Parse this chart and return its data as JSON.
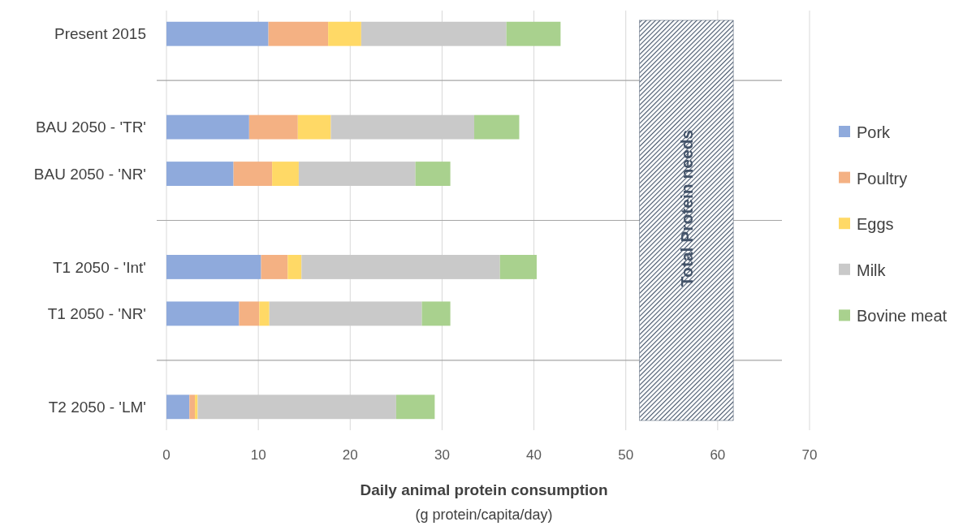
{
  "chart_data": {
    "type": "bar",
    "orientation": "horizontal",
    "stacked": true,
    "categories": [
      "Present 2015",
      null,
      "BAU 2050 - 'TR'",
      "BAU 2050 - 'NR'",
      null,
      "T1 2050 - 'Int'",
      "T1 2050 - 'NR'",
      null,
      "T2 2050 - 'LM'"
    ],
    "series": [
      {
        "name": "Pork",
        "color": "#8faadc",
        "values": [
          11.1,
          null,
          9.0,
          7.3,
          null,
          10.3,
          7.9,
          null,
          2.5
        ]
      },
      {
        "name": "Poultry",
        "color": "#f4b183",
        "values": [
          6.5,
          null,
          5.3,
          4.2,
          null,
          2.9,
          2.2,
          null,
          0.6
        ]
      },
      {
        "name": "Eggs",
        "color": "#ffd966",
        "values": [
          3.6,
          null,
          3.6,
          2.9,
          null,
          1.5,
          1.1,
          null,
          0.3
        ]
      },
      {
        "name": "Milk",
        "color": "#c9c9c9",
        "values": [
          15.8,
          null,
          15.6,
          12.7,
          null,
          21.6,
          16.6,
          null,
          21.6
        ]
      },
      {
        "name": "Bovine meat",
        "color": "#a9d18e",
        "values": [
          5.9,
          null,
          4.9,
          3.8,
          null,
          4.0,
          3.1,
          null,
          4.2
        ]
      }
    ],
    "xlim": [
      0,
      70
    ],
    "xticks": [
      0,
      10,
      20,
      30,
      40,
      50,
      60,
      70
    ],
    "xlabel": "Daily animal protein consumption",
    "annotations": [
      "(g protein/capita/day)"
    ],
    "bands": [
      {
        "axis": "x",
        "from": 51.5,
        "to": 61.7,
        "label": "Total Protein needs",
        "color": "#44546a"
      }
    ],
    "grid": "x",
    "legend": "right"
  }
}
